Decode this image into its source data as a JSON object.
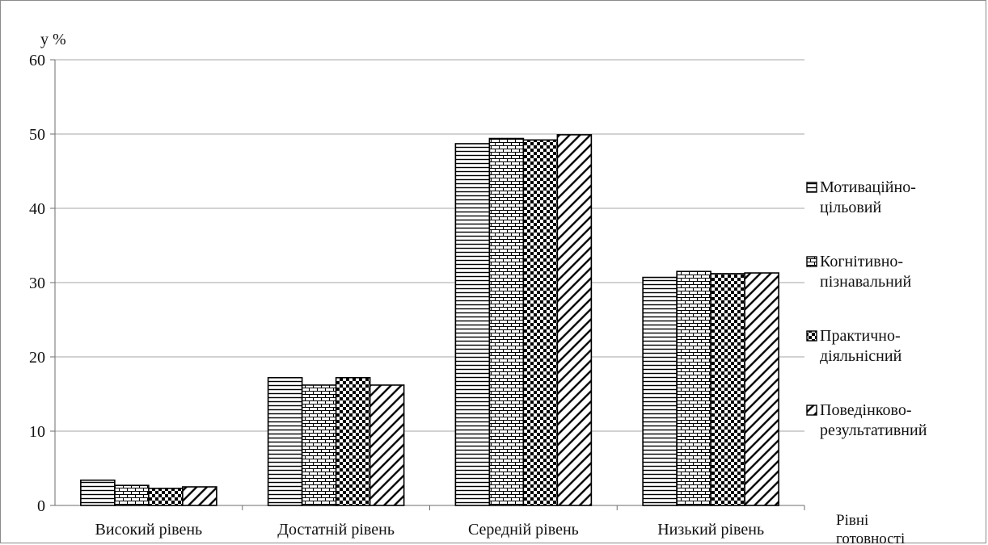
{
  "chart_data": {
    "type": "bar",
    "title": "",
    "ylabel": "у %",
    "xlabel": [
      "Рівні",
      "готовності"
    ],
    "ylim": [
      0,
      60
    ],
    "yticks": [
      0,
      10,
      20,
      30,
      40,
      50,
      60
    ],
    "grid": true,
    "legend_position": "right",
    "categories": [
      "Високий рівень",
      "Достатній рівень",
      "Середній рівень",
      "Низький рівень"
    ],
    "series": [
      {
        "name": [
          "Мотиваційно-",
          "цільовий"
        ],
        "pattern": "horizontal-lines",
        "values": [
          3.4,
          17.2,
          48.7,
          30.7
        ]
      },
      {
        "name": [
          "Когнітивно-",
          "пізнавальний"
        ],
        "pattern": "brick",
        "values": [
          2.7,
          16.2,
          49.4,
          31.5
        ]
      },
      {
        "name": [
          "Практично-",
          "діяльнісний"
        ],
        "pattern": "checkerboard",
        "values": [
          2.3,
          17.2,
          49.2,
          31.2
        ]
      },
      {
        "name": [
          "Поведінково-",
          "результативний"
        ],
        "pattern": "diagonal-lines",
        "values": [
          2.5,
          16.2,
          49.9,
          31.3
        ]
      }
    ]
  }
}
